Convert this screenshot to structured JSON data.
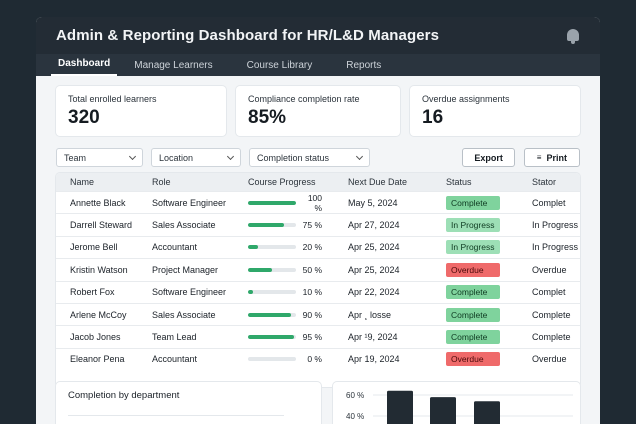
{
  "app": {
    "title": "Admin & Reporting Dashboard for HR/L&D Managers"
  },
  "tabs": [
    {
      "label": "Dashboard",
      "active": true
    },
    {
      "label": "Manage Learners"
    },
    {
      "label": "Course Library"
    },
    {
      "label": "Reports"
    }
  ],
  "kpis": [
    {
      "label": "Total enrolled learners",
      "value": "320"
    },
    {
      "label": "Compliance completion rate",
      "value": "85%"
    },
    {
      "label": "Overdue assignments",
      "value": "16"
    }
  ],
  "filters": [
    {
      "label": "Team"
    },
    {
      "label": "Location"
    },
    {
      "label": "Completion status"
    }
  ],
  "actions": {
    "export_label": "Export",
    "print_label": "Print"
  },
  "table": {
    "columns": [
      "Name",
      "Role",
      "Course Progress",
      "Next Due Date",
      "Status",
      "Stator"
    ],
    "rows": [
      {
        "name": "Annette Black",
        "role": "Software Engineer",
        "progress": 100,
        "progress_label": "100 %",
        "due": "May 5, 2024",
        "status": "Complete",
        "stator": "Complet"
      },
      {
        "name": "Darrell Steward",
        "role": "Sales Associate",
        "progress": 75,
        "progress_label": "75 %",
        "due": "Apr 27, 2024",
        "status": "In Progress",
        "stator": "In Progress"
      },
      {
        "name": "Jerome Bell",
        "role": "Accountant",
        "progress": 20,
        "progress_label": "20 %",
        "due": "Apr 25, 2024",
        "status": "In Progress",
        "stator": "In Progress"
      },
      {
        "name": "Kristin Watson",
        "role": "Project Manager",
        "progress": 50,
        "progress_label": "50 %",
        "due": "Apr 25, 2024",
        "status": "Overdue",
        "stator": "Overdue"
      },
      {
        "name": "Robert Fox",
        "role": "Software Engineer",
        "progress": 10,
        "progress_label": "10 %",
        "due": "Apr 22, 2024",
        "status": "Complete",
        "stator": "Complet"
      },
      {
        "name": "Arlene McCoy",
        "role": "Sales Associate",
        "progress": 90,
        "progress_label": "90 %",
        "due": "Apr ¸ losse",
        "status": "Complete",
        "stator": "Complete"
      },
      {
        "name": "Jacob Jones",
        "role": "Team Lead",
        "progress": 95,
        "progress_label": "95 %",
        "due": "Apr ¹9, 2024",
        "status": "Complete",
        "stator": "Complete"
      },
      {
        "name": "Eleanor Pena",
        "role": "Accountant",
        "progress": 0,
        "progress_label": "0 %",
        "due": "Apr 19, 2024",
        "status": "Overdue",
        "stator": "Overdue"
      }
    ]
  },
  "dept_panel": {
    "title": "Completion by department"
  },
  "chart_data": {
    "type": "bar",
    "yticks": [
      "60 %",
      "40 %"
    ],
    "ylim": [
      0,
      80
    ],
    "values": [
      64,
      58,
      54
    ]
  },
  "colors": {
    "progress": "#2fa86a",
    "complete": "#7fd39d",
    "in_progress": "#9ddfb6",
    "overdue": "#ef6a6a",
    "bar": "#222b33"
  }
}
